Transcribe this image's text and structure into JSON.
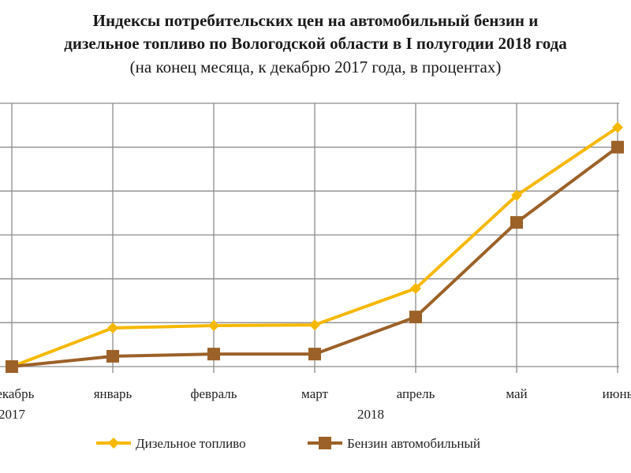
{
  "chart_data": {
    "type": "line",
    "title_line1": "Индексы потребительских цен на автомобильный бензин и",
    "title_line2": "дизельное топливо по Вологодской области в I полугодии 2018 года",
    "subtitle": "(на конец месяца, к декабрю 2017 года, в процентах)",
    "categories": [
      "декабрь",
      "январь",
      "февраль",
      "март",
      "апрель",
      "май",
      "июнь"
    ],
    "year_labels": {
      "first": "2017",
      "second": "2018"
    },
    "ylim": [
      100,
      112
    ],
    "grid": true,
    "legend_position": "bottom",
    "series": [
      {
        "name": "Дизельное топливо",
        "color": "#F5B800",
        "marker": "diamond",
        "values": [
          100.0,
          101.76,
          101.87,
          101.9,
          103.56,
          107.8,
          110.9
        ]
      },
      {
        "name": "Бензин автомобильный",
        "color": "#9C6128",
        "marker": "square",
        "values": [
          100.0,
          100.47,
          100.57,
          100.57,
          102.26,
          106.57,
          110.0
        ]
      }
    ]
  }
}
